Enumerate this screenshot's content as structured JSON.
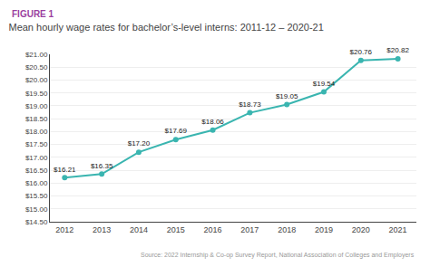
{
  "chart_data": {
    "type": "line",
    "title": "Mean hourly wage rates for bachelor’s-level interns: 2011-12 – 2020-21",
    "annotations": [
      {
        "text": "FIGURE 1",
        "color": "#9b3fa0"
      },
      {
        "text": "Source: 2022 Internship & Co-op Survey Report, National Association of Colleges and Employers",
        "color": "#999999"
      }
    ],
    "x": [
      2012,
      2013,
      2014,
      2015,
      2016,
      2017,
      2018,
      2019,
      2020,
      2021
    ],
    "values": [
      16.21,
      16.35,
      17.2,
      17.69,
      18.06,
      18.73,
      19.05,
      19.54,
      20.76,
      20.82
    ],
    "value_labels": [
      "$16.21",
      "$16.35",
      "$17.20",
      "$17.69",
      "$18.06",
      "$18.73",
      "$19.05",
      "$19.54",
      "$20.76",
      "$20.82"
    ],
    "data_labels": true,
    "color": "#3ab5b0",
    "marker": "circle",
    "xlim": [
      2011.6,
      2021.5
    ],
    "xticks": [
      2012,
      2013,
      2014,
      2015,
      2016,
      2017,
      2018,
      2019,
      2020,
      2021
    ],
    "ylim": [
      14.5,
      21.0
    ],
    "yticks": [
      {
        "value": 14.5,
        "label": "$14.50"
      },
      {
        "value": 15.0,
        "label": "$15.00"
      },
      {
        "value": 15.5,
        "label": "$15.50"
      },
      {
        "value": 16.0,
        "label": "$16.00"
      },
      {
        "value": 16.5,
        "label": "$16.50"
      },
      {
        "value": 17.0,
        "label": "$17.00"
      },
      {
        "value": 17.5,
        "label": "$17.50"
      },
      {
        "value": 18.0,
        "label": "$18.00"
      },
      {
        "value": 18.5,
        "label": "$18.50"
      },
      {
        "value": 19.0,
        "label": "$19.00"
      },
      {
        "value": 19.5,
        "label": "$19.50"
      },
      {
        "value": 20.0,
        "label": "$20.00"
      },
      {
        "value": 20.5,
        "label": "$20.50"
      },
      {
        "value": 21.0,
        "label": "$21.00"
      }
    ],
    "grid": true
  }
}
